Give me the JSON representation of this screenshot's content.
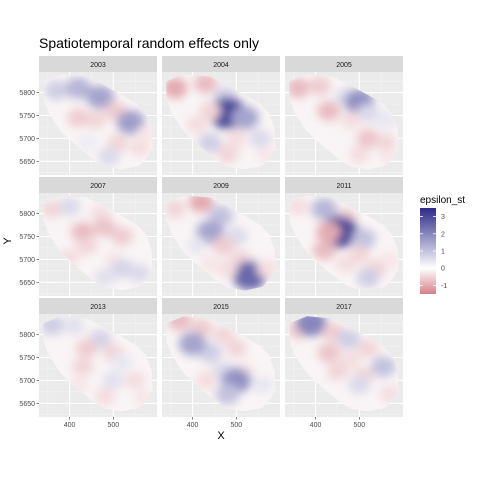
{
  "chart_data": {
    "type": "heatmap",
    "title": "Spatiotemporal random effects only",
    "xlabel": "X",
    "ylabel": "Y",
    "xlim": [
      330,
      600
    ],
    "ylim": [
      5620,
      5845
    ],
    "x_ticks": [
      400,
      500
    ],
    "y_ticks": [
      5650,
      5700,
      5750,
      5800
    ],
    "facets": [
      "2003",
      "2004",
      "2005",
      "2007",
      "2009",
      "2011",
      "2013",
      "2015",
      "2017"
    ],
    "legend": {
      "title": "epsilon_st",
      "position": "right",
      "ticks": [
        3,
        2,
        1,
        0,
        -1
      ],
      "range": [
        -1.5,
        3.5
      ],
      "colors": {
        "low": "#b2182b",
        "mid": "#ffffff",
        "high": "#2d2a8a"
      }
    },
    "region_polygon": [
      [
        340,
        5825
      ],
      [
        380,
        5840
      ],
      [
        440,
        5835
      ],
      [
        470,
        5820
      ],
      [
        520,
        5795
      ],
      [
        555,
        5775
      ],
      [
        575,
        5755
      ],
      [
        588,
        5720
      ],
      [
        590,
        5680
      ],
      [
        578,
        5660
      ],
      [
        560,
        5640
      ],
      [
        520,
        5632
      ],
      [
        480,
        5638
      ],
      [
        460,
        5650
      ],
      [
        420,
        5680
      ],
      [
        380,
        5715
      ],
      [
        355,
        5750
      ],
      [
        340,
        5785
      ]
    ],
    "series": [
      {
        "name": "2003",
        "blobs": [
          [
            370,
            5805,
            0.8
          ],
          [
            420,
            5810,
            1.2
          ],
          [
            470,
            5790,
            1.5
          ],
          [
            505,
            5760,
            -0.6
          ],
          [
            540,
            5735,
            1.6
          ],
          [
            460,
            5740,
            -0.5
          ],
          [
            420,
            5745,
            -0.6
          ],
          [
            510,
            5690,
            -0.5
          ],
          [
            560,
            5680,
            -0.4
          ],
          [
            490,
            5660,
            0.6
          ],
          [
            575,
            5710,
            -0.3
          ],
          [
            440,
            5690,
            0.3
          ]
        ]
      },
      {
        "name": "2004",
        "blobs": [
          [
            360,
            5810,
            -1.0
          ],
          [
            430,
            5820,
            -0.8
          ],
          [
            475,
            5790,
            0.8
          ],
          [
            480,
            5755,
            3.0
          ],
          [
            520,
            5745,
            1.5
          ],
          [
            440,
            5760,
            -0.5
          ],
          [
            410,
            5730,
            -0.4
          ],
          [
            500,
            5700,
            -0.4
          ],
          [
            555,
            5700,
            0.6
          ],
          [
            480,
            5665,
            -0.5
          ],
          [
            570,
            5665,
            -0.3
          ],
          [
            440,
            5690,
            0.8
          ]
        ]
      },
      {
        "name": "2005",
        "blobs": [
          [
            360,
            5810,
            -0.8
          ],
          [
            410,
            5815,
            -0.6
          ],
          [
            470,
            5790,
            0.6
          ],
          [
            500,
            5780,
            1.8
          ],
          [
            520,
            5755,
            0.6
          ],
          [
            430,
            5760,
            -0.8
          ],
          [
            480,
            5740,
            -0.4
          ],
          [
            520,
            5700,
            -0.7
          ],
          [
            560,
            5690,
            -0.5
          ],
          [
            500,
            5665,
            -0.4
          ],
          [
            570,
            5660,
            -0.3
          ],
          [
            560,
            5740,
            0.4
          ]
        ]
      },
      {
        "name": "2007",
        "blobs": [
          [
            360,
            5810,
            -0.5
          ],
          [
            400,
            5815,
            0.6
          ],
          [
            470,
            5800,
            -0.4
          ],
          [
            480,
            5770,
            -0.7
          ],
          [
            520,
            5750,
            -0.6
          ],
          [
            430,
            5760,
            -0.8
          ],
          [
            440,
            5730,
            -0.5
          ],
          [
            500,
            5700,
            -0.3
          ],
          [
            520,
            5680,
            0.7
          ],
          [
            480,
            5660,
            0.5
          ],
          [
            560,
            5670,
            0.6
          ],
          [
            400,
            5705,
            -0.4
          ]
        ]
      },
      {
        "name": "2009",
        "blobs": [
          [
            360,
            5810,
            -0.5
          ],
          [
            420,
            5825,
            -1.0
          ],
          [
            465,
            5795,
            1.0
          ],
          [
            440,
            5760,
            1.5
          ],
          [
            500,
            5750,
            0.6
          ],
          [
            470,
            5730,
            -0.6
          ],
          [
            410,
            5730,
            0.4
          ],
          [
            510,
            5700,
            -0.5
          ],
          [
            530,
            5665,
            2.5
          ],
          [
            480,
            5680,
            -0.4
          ],
          [
            570,
            5680,
            -0.4
          ],
          [
            440,
            5690,
            -0.3
          ]
        ]
      },
      {
        "name": "2011",
        "blobs": [
          [
            360,
            5815,
            -0.4
          ],
          [
            420,
            5810,
            1.2
          ],
          [
            470,
            5790,
            -0.6
          ],
          [
            455,
            5760,
            3.0
          ],
          [
            510,
            5745,
            1.0
          ],
          [
            430,
            5760,
            -1.0
          ],
          [
            420,
            5720,
            -0.8
          ],
          [
            500,
            5710,
            -0.5
          ],
          [
            540,
            5680,
            -0.5
          ],
          [
            520,
            5660,
            0.8
          ],
          [
            570,
            5700,
            -0.3
          ],
          [
            470,
            5690,
            -0.4
          ]
        ]
      },
      {
        "name": "2013",
        "blobs": [
          [
            360,
            5820,
            0.8
          ],
          [
            410,
            5820,
            0.5
          ],
          [
            470,
            5790,
            0.7
          ],
          [
            500,
            5760,
            -0.5
          ],
          [
            520,
            5740,
            0.4
          ],
          [
            440,
            5770,
            -0.6
          ],
          [
            430,
            5730,
            -0.5
          ],
          [
            500,
            5700,
            0.5
          ],
          [
            550,
            5700,
            -0.4
          ],
          [
            480,
            5665,
            -0.4
          ],
          [
            570,
            5660,
            -0.3
          ],
          [
            420,
            5690,
            -0.3
          ]
        ]
      },
      {
        "name": "2015",
        "blobs": [
          [
            370,
            5830,
            -0.8
          ],
          [
            420,
            5815,
            -0.6
          ],
          [
            470,
            5800,
            -0.5
          ],
          [
            440,
            5760,
            0.8
          ],
          [
            400,
            5780,
            1.5
          ],
          [
            500,
            5770,
            -0.5
          ],
          [
            470,
            5720,
            0.6
          ],
          [
            520,
            5720,
            -0.3
          ],
          [
            500,
            5700,
            1.8
          ],
          [
            480,
            5670,
            1.0
          ],
          [
            560,
            5690,
            0.4
          ],
          [
            430,
            5700,
            -0.4
          ]
        ]
      },
      {
        "name": "2017",
        "blobs": [
          [
            360,
            5810,
            -0.6
          ],
          [
            390,
            5825,
            2.0
          ],
          [
            440,
            5805,
            -0.6
          ],
          [
            475,
            5790,
            0.8
          ],
          [
            520,
            5770,
            -0.5
          ],
          [
            430,
            5760,
            -0.7
          ],
          [
            480,
            5745,
            -0.4
          ],
          [
            510,
            5710,
            -0.5
          ],
          [
            555,
            5730,
            1.0
          ],
          [
            500,
            5690,
            0.6
          ],
          [
            570,
            5670,
            -0.4
          ],
          [
            450,
            5720,
            -0.5
          ]
        ]
      }
    ]
  }
}
